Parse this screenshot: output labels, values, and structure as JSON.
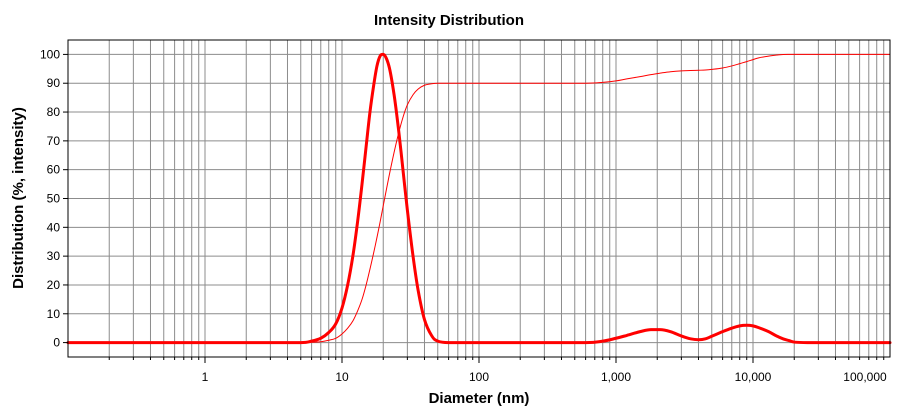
{
  "chart_data": {
    "type": "line",
    "title": "Intensity Distribution",
    "xlabel": "Diameter (nm)",
    "ylabel": "Distribution (%, intensity)",
    "xscale": "log",
    "xlim": [
      0.1,
      100000
    ],
    "ylim": [
      -5,
      105
    ],
    "grid": true,
    "legend": "none",
    "x_ticks": [
      {
        "value": 1,
        "label": "1"
      },
      {
        "value": 10,
        "label": "10"
      },
      {
        "value": 100,
        "label": "100"
      },
      {
        "value": 1000,
        "label": "1,000"
      },
      {
        "value": 10000,
        "label": "10,000"
      },
      {
        "value": 100000,
        "label": "100,000"
      }
    ],
    "y_ticks": [
      {
        "value": 0,
        "label": "0"
      },
      {
        "value": 10,
        "label": "10"
      },
      {
        "value": 20,
        "label": "20"
      },
      {
        "value": 30,
        "label": "30"
      },
      {
        "value": 40,
        "label": "40"
      },
      {
        "value": 50,
        "label": "50"
      },
      {
        "value": 60,
        "label": "60"
      },
      {
        "value": 70,
        "label": "70"
      },
      {
        "value": 80,
        "label": "80"
      },
      {
        "value": 90,
        "label": "90"
      },
      {
        "value": 100,
        "label": "100"
      }
    ],
    "series": [
      {
        "color": "#ff0000",
        "style": "thick",
        "x": [
          0.1,
          1,
          3,
          5,
          6,
          7,
          8,
          9,
          10,
          11,
          12,
          13,
          14,
          15,
          16,
          17,
          18,
          19,
          20,
          22,
          24,
          26,
          28,
          30,
          33,
          36,
          40,
          45,
          50,
          60,
          70,
          100,
          300,
          600,
          800,
          1000,
          1200,
          1500,
          1800,
          2100,
          2500,
          3000,
          3500,
          4000,
          4500,
          5000,
          6000,
          7000,
          8000,
          9000,
          10000,
          11000,
          13000,
          15000,
          18000,
          25000,
          100000
        ],
        "y": [
          0,
          0,
          0,
          0,
          0.5,
          1.5,
          3.5,
          6.5,
          12,
          20,
          30,
          42,
          55,
          68,
          80,
          89,
          96,
          99.5,
          100,
          96,
          86,
          73,
          59,
          46,
          30,
          18,
          8,
          2.5,
          0.5,
          0,
          0,
          0,
          0,
          0,
          0.5,
          1.5,
          2.5,
          3.8,
          4.5,
          4.5,
          3.8,
          2.3,
          1.3,
          1.0,
          1.3,
          2.2,
          3.8,
          5.0,
          5.8,
          6.0,
          5.8,
          5.2,
          3.8,
          2.2,
          0.8,
          0,
          0
        ]
      },
      {
        "color": "#ff0000",
        "style": "thin",
        "x": [
          0.1,
          1,
          3,
          5,
          6,
          7,
          8,
          9,
          10,
          11,
          12,
          13,
          14,
          15,
          16,
          17,
          18,
          19,
          20,
          22,
          24,
          26,
          28,
          30,
          33,
          36,
          40,
          45,
          50,
          60,
          100,
          300,
          600,
          800,
          1000,
          1200,
          1500,
          1800,
          2100,
          2500,
          3000,
          3500,
          4000,
          4500,
          5000,
          6000,
          7000,
          8000,
          9000,
          10000,
          11000,
          13000,
          15000,
          18000,
          25000,
          100000
        ],
        "y": [
          0,
          0,
          0,
          0,
          0.1,
          0.3,
          0.8,
          1.5,
          3,
          5,
          7.5,
          11,
          15,
          20,
          25.5,
          31,
          36.5,
          42,
          47.5,
          57.5,
          66,
          73,
          78.5,
          82.5,
          86,
          88,
          89.3,
          89.8,
          90,
          90,
          90,
          90,
          90,
          90.3,
          90.8,
          91.5,
          92.3,
          93,
          93.5,
          94,
          94.3,
          94.4,
          94.5,
          94.6,
          94.8,
          95.3,
          96,
          96.8,
          97.5,
          98.2,
          98.8,
          99.4,
          99.8,
          100,
          100,
          100
        ]
      }
    ]
  }
}
